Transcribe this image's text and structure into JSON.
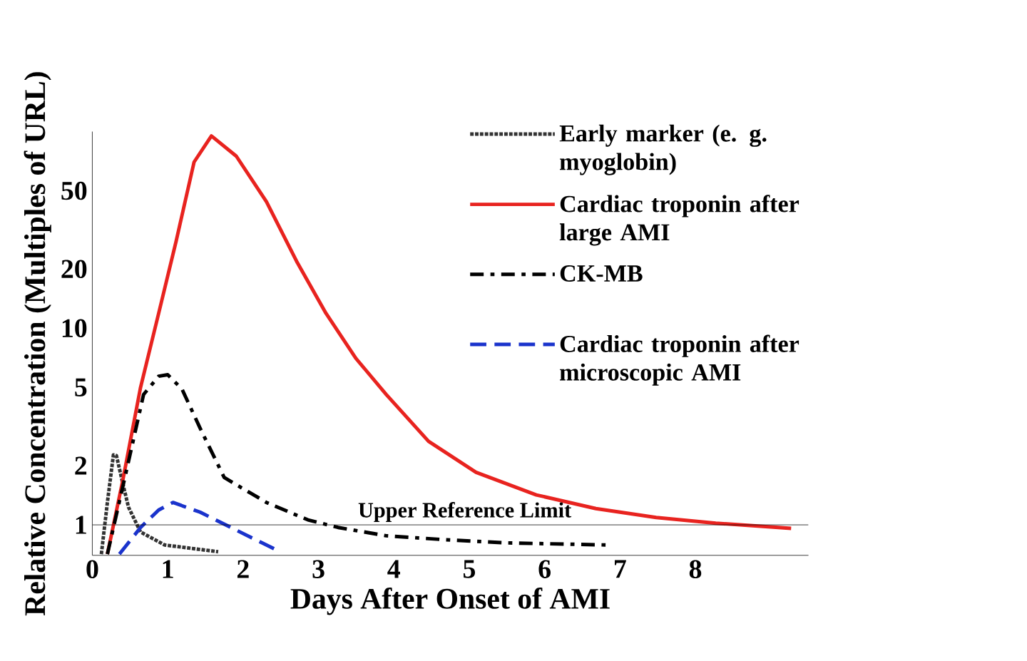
{
  "chart_data": {
    "type": "line",
    "xlabel": "Days After Onset of AMI",
    "ylabel": "Relative Concentration (Multiples of URL)",
    "xlim": [
      0,
      9.5
    ],
    "ylim": [
      0.7,
      100
    ],
    "xticks": [
      0,
      1,
      2,
      3,
      4,
      5,
      6,
      7,
      8
    ],
    "yticks": [
      1,
      2,
      5,
      10,
      20,
      50
    ],
    "grid": false,
    "legend": "top right",
    "log": "y",
    "ref_lines": [
      {
        "axis": "y",
        "value": 1,
        "label": "Upper Reference Limit",
        "color": "#000000"
      }
    ],
    "series": [
      {
        "name": "Early marker (e. g. myoglobin)",
        "color": "#333333",
        "line_style": "dotted",
        "x": [
          0.12,
          0.2,
          0.28,
          0.32,
          0.4,
          0.48,
          0.64,
          0.96,
          1.67
        ],
        "values": [
          0.71,
          1.3,
          2.27,
          2.25,
          1.65,
          1.23,
          0.92,
          0.79,
          0.73
        ]
      },
      {
        "name": "Cardiac troponin after large AMI",
        "color": "#e8231f",
        "line_style": "solid",
        "x": [
          0.2,
          0.4,
          0.64,
          0.88,
          1.11,
          1.35,
          1.58,
          1.91,
          2.31,
          2.71,
          3.1,
          3.5,
          3.9,
          4.46,
          5.09,
          5.89,
          6.68,
          7.48,
          8.27,
          9.27
        ],
        "values": [
          0.71,
          1.65,
          5,
          11.9,
          27.5,
          70,
          95,
          75,
          44,
          21.9,
          11.9,
          7,
          4.6,
          2.66,
          1.85,
          1.42,
          1.21,
          1.09,
          1.02,
          0.96
        ]
      },
      {
        "name": "CK-MB",
        "color": "#000000",
        "line_style": "dashdot",
        "x": [
          0.2,
          0.48,
          0.68,
          0.88,
          1.0,
          1.19,
          1.43,
          1.75,
          2.31,
          2.86,
          3.26,
          3.9,
          4.69,
          5.49,
          6.84
        ],
        "values": [
          0.71,
          2.1,
          4.6,
          5.7,
          5.8,
          4.9,
          3.1,
          1.74,
          1.3,
          1.06,
          0.97,
          0.88,
          0.84,
          0.81,
          0.79
        ]
      },
      {
        "name": "Cardiac troponin after microscopic AMI",
        "color": "#1a33cc",
        "line_style": "dashed",
        "x": [
          0.36,
          0.64,
          0.88,
          1.07,
          1.43,
          1.91,
          2.43
        ],
        "values": [
          0.71,
          0.97,
          1.19,
          1.3,
          1.16,
          0.94,
          0.75
        ]
      }
    ]
  }
}
